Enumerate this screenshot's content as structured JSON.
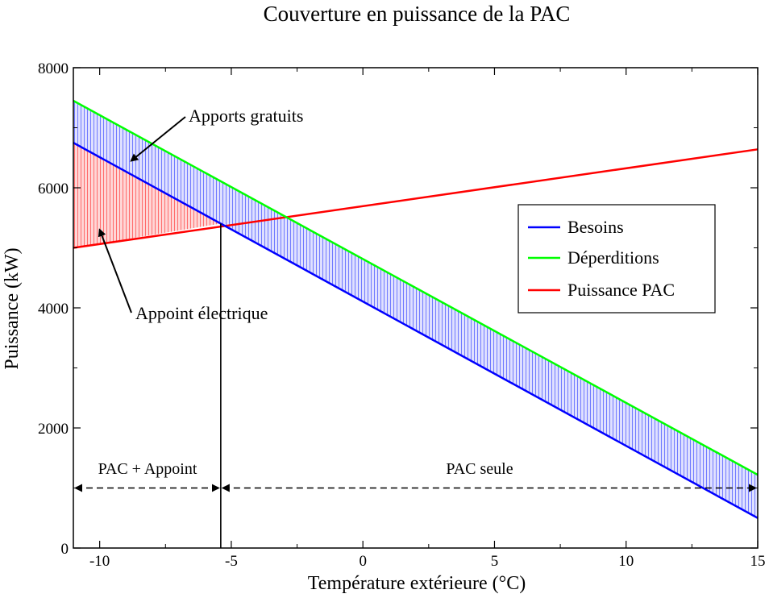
{
  "chart_data": {
    "type": "line",
    "title": "Couverture en puissance de la PAC",
    "xlabel": "Température extérieure (°C)",
    "ylabel": "Puissance (kW)",
    "xlim": [
      -11,
      15
    ],
    "ylim": [
      0,
      8000
    ],
    "x_ticks": [
      -10,
      -5,
      0,
      5,
      10,
      15
    ],
    "y_ticks": [
      0,
      2000,
      4000,
      6000,
      8000
    ],
    "grid": false,
    "legend": "right",
    "series": [
      {
        "name": "Besoins",
        "color": "#0000ff",
        "points": [
          [
            -11,
            6750
          ],
          [
            15,
            500
          ]
        ]
      },
      {
        "name": "Déperditions",
        "color": "#00ff00",
        "points": [
          [
            -11,
            7450
          ],
          [
            15,
            1220
          ]
        ]
      },
      {
        "name": "Puissance PAC",
        "color": "#ff0000",
        "points": [
          [
            -11,
            5000
          ],
          [
            15,
            6640
          ]
        ]
      }
    ],
    "fills": [
      {
        "between": [
          "Besoins",
          "Déperditions"
        ],
        "color": "#0000ff",
        "label": "Apports gratuits"
      },
      {
        "between": [
          "Puissance PAC",
          "Besoins"
        ],
        "x_range": [
          -11,
          -5.4
        ],
        "color": "#ff0000",
        "label": "Appoint électrique"
      }
    ],
    "vertical_line_x": -5.4,
    "range_arrows": {
      "y": 1000,
      "left": {
        "label": "PAC + Appoint",
        "from": -11,
        "to": -5.4
      },
      "right": {
        "label": "PAC seule",
        "from": -5.4,
        "to": 15
      }
    },
    "annotations": [
      {
        "text": "Apports gratuits",
        "text_pos": [
          -6.7,
          7250
        ],
        "arrow_to": [
          -8.8,
          6450
        ]
      },
      {
        "text": "Appoint électrique",
        "text_pos": [
          -8.9,
          3880
        ],
        "arrow_to": [
          -10.0,
          5300
        ]
      }
    ]
  }
}
